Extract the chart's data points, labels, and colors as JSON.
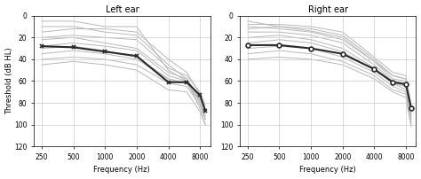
{
  "title_left": "Left ear",
  "title_right": "Right ear",
  "xlabel": "Frequency (Hz)",
  "ylabel": "Threshold (dB HL)",
  "freqs": [
    250,
    500,
    1000,
    2000,
    4000,
    6000,
    8000,
    9000
  ],
  "freqs_mean": [
    250,
    500,
    1000,
    2000,
    4000,
    6000,
    8000,
    9000
  ],
  "xtick_labels": [
    "250",
    "500",
    "1000",
    "2000",
    "4000",
    "8000"
  ],
  "xtick_vals": [
    250,
    500,
    1000,
    2000,
    4000,
    8000
  ],
  "ylim_min": 120,
  "ylim_max": 0,
  "yticks": [
    0,
    20,
    40,
    60,
    80,
    100,
    120
  ],
  "xlim_min": 210,
  "xlim_max": 10000,
  "bg_color": "#ffffff",
  "mean_color": "#2a2a2a",
  "indiv_color": "#b8b8b8",
  "mean_lw": 1.5,
  "indiv_lw": 0.7,
  "left_mean": [
    28,
    29,
    33,
    37,
    61,
    61,
    73,
    87
  ],
  "right_mean": [
    27,
    27,
    30,
    35,
    49,
    61,
    63,
    85
  ],
  "left_individuals": [
    [
      5,
      5,
      10,
      10,
      50,
      60,
      85,
      100
    ],
    [
      10,
      10,
      15,
      18,
      45,
      58,
      78,
      95
    ],
    [
      15,
      12,
      12,
      15,
      40,
      52,
      72,
      88
    ],
    [
      20,
      18,
      20,
      22,
      48,
      55,
      70,
      82
    ],
    [
      28,
      25,
      28,
      32,
      55,
      60,
      75,
      88
    ],
    [
      35,
      32,
      35,
      40,
      58,
      62,
      78,
      92
    ],
    [
      40,
      38,
      40,
      45,
      62,
      65,
      82,
      95
    ],
    [
      45,
      42,
      45,
      50,
      68,
      70,
      88,
      100
    ],
    [
      30,
      28,
      32,
      38,
      58,
      62,
      80,
      90
    ],
    [
      22,
      20,
      25,
      30,
      52,
      58,
      76,
      88
    ]
  ],
  "right_individuals": [
    [
      5,
      10,
      12,
      18,
      40,
      55,
      58,
      85
    ],
    [
      10,
      12,
      15,
      22,
      42,
      58,
      60,
      88
    ],
    [
      15,
      15,
      18,
      25,
      45,
      60,
      62,
      90
    ],
    [
      20,
      18,
      22,
      30,
      48,
      62,
      65,
      92
    ],
    [
      25,
      22,
      25,
      33,
      50,
      62,
      68,
      95
    ],
    [
      30,
      28,
      30,
      38,
      52,
      65,
      70,
      98
    ],
    [
      35,
      32,
      35,
      42,
      55,
      68,
      72,
      100
    ],
    [
      40,
      38,
      40,
      45,
      58,
      70,
      75,
      102
    ],
    [
      8,
      8,
      10,
      15,
      38,
      52,
      55,
      82
    ],
    [
      12,
      10,
      14,
      20,
      42,
      55,
      58,
      85
    ]
  ]
}
